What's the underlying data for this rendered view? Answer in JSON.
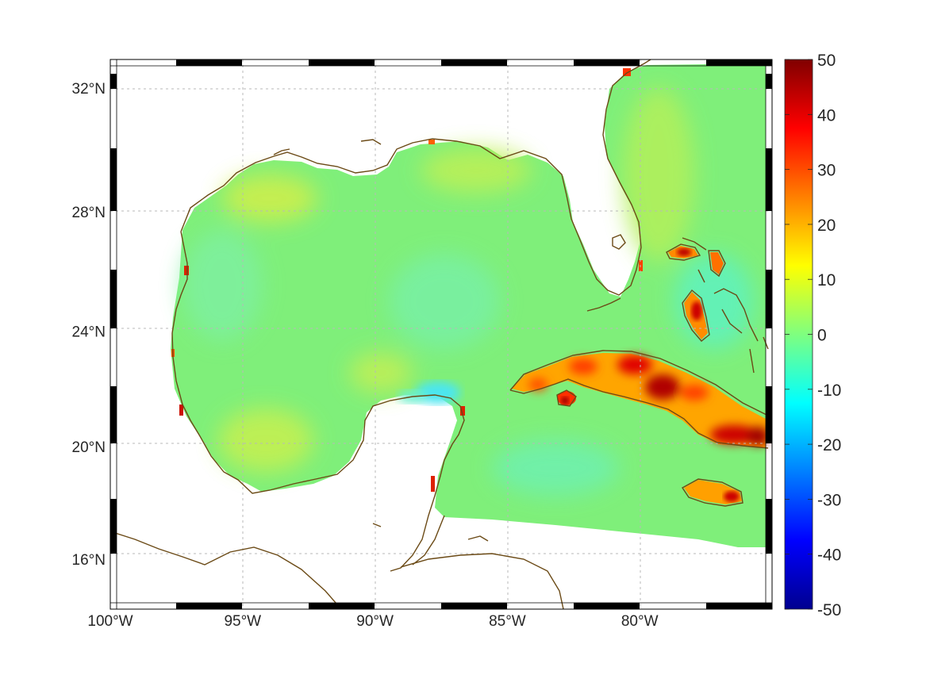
{
  "chart_data": {
    "type": "heatmap",
    "title": "",
    "xlabel": "",
    "ylabel": "",
    "projection": "mercator",
    "lon_range": [
      -100,
      -75
    ],
    "lat_range": [
      14.2,
      32.9
    ],
    "x_ticks": [
      {
        "value": -100,
        "label": "100°W"
      },
      {
        "value": -95,
        "label": "95°W"
      },
      {
        "value": -90,
        "label": "90°W"
      },
      {
        "value": -85,
        "label": "85°W"
      },
      {
        "value": -80,
        "label": "80°W"
      }
    ],
    "y_ticks": [
      {
        "value": 16,
        "label": "16°N"
      },
      {
        "value": 20,
        "label": "20°N"
      },
      {
        "value": 24,
        "label": "24°N"
      },
      {
        "value": 28,
        "label": "28°N"
      },
      {
        "value": 32,
        "label": "32°N"
      }
    ],
    "grid": true,
    "colormap": "jet",
    "colorbar": {
      "range": [
        -50,
        50
      ],
      "ticks": [
        {
          "value": 50,
          "label": "50"
        },
        {
          "value": 40,
          "label": "40"
        },
        {
          "value": 30,
          "label": "30"
        },
        {
          "value": 20,
          "label": "20"
        },
        {
          "value": 10,
          "label": "10"
        },
        {
          "value": 0,
          "label": "0"
        },
        {
          "value": -10,
          "label": "-10"
        },
        {
          "value": -20,
          "label": "-20"
        },
        {
          "value": -30,
          "label": "-30"
        },
        {
          "value": -40,
          "label": "-40"
        },
        {
          "value": -50,
          "label": "-50"
        }
      ]
    },
    "field_description": "Mostly 0 to 8 over the Gulf of Mexico and open Caribbean; warm values 20-50 over Cuba, Jamaica and the Bahamas; small negative values (-5 to -15) near the north Yucatan coast.",
    "hotspots": [
      {
        "name": "western-cuba",
        "lon": -82.3,
        "lat": 22.7,
        "value": 35
      },
      {
        "name": "central-cuba",
        "lon": -79.8,
        "lat": 22.2,
        "value": 45
      },
      {
        "name": "eastern-cuba",
        "lon": -76.5,
        "lat": 20.2,
        "value": 45
      },
      {
        "name": "jamaica",
        "lon": -77.2,
        "lat": 18.1,
        "value": 35
      },
      {
        "name": "andros-bahamas",
        "lon": -77.9,
        "lat": 24.5,
        "value": 30
      },
      {
        "name": "grand-bahama",
        "lon": -78.5,
        "lat": 26.6,
        "value": 30
      }
    ],
    "coast_color": "#6b4a16"
  }
}
